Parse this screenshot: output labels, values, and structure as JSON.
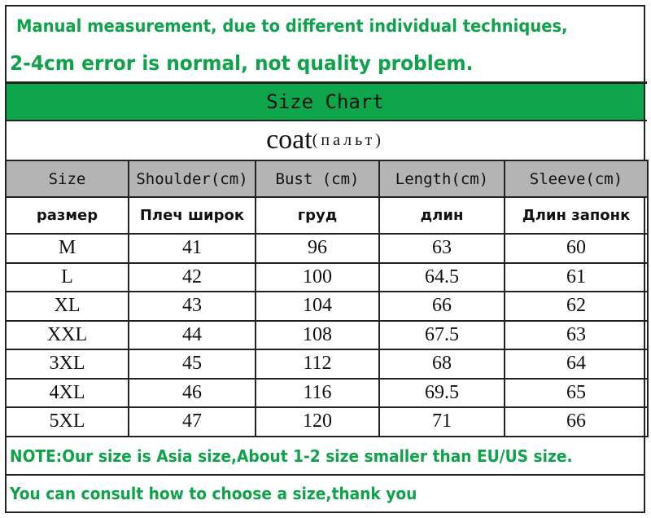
{
  "notice": {
    "line1": "Manual measurement, due to different individual techniques,",
    "line2": "2-4cm error is normal, not quality problem."
  },
  "title": "Size Chart",
  "subtitle": {
    "main": "coat",
    "translation": "(пальт)"
  },
  "colors": {
    "accent_green": "#0ea64b",
    "text_green": "#0fa24a",
    "header_gray": "#b4b4b4"
  },
  "table": {
    "headers": [
      "Size",
      "Shoulder(cm)",
      "Bust (cm)",
      "Length(cm)",
      "Sleeve(cm)"
    ],
    "headers_ru": [
      "размер",
      "Плеч широк",
      "груд",
      "длин",
      "Длин запонк"
    ],
    "rows": [
      [
        "M",
        "41",
        "96",
        "63",
        "60"
      ],
      [
        "L",
        "42",
        "100",
        "64.5",
        "61"
      ],
      [
        "XL",
        "43",
        "104",
        "66",
        "62"
      ],
      [
        "XXL",
        "44",
        "108",
        "67.5",
        "63"
      ],
      [
        "3XL",
        "45",
        "112",
        "68",
        "64"
      ],
      [
        "4XL",
        "46",
        "116",
        "69.5",
        "65"
      ],
      [
        "5XL",
        "47",
        "120",
        "71",
        "66"
      ]
    ]
  },
  "footer": {
    "note": "NOTE:Our size is Asia size,About 1-2 size smaller than EU/US size.",
    "consult": "You can consult how to choose a size,thank you"
  }
}
